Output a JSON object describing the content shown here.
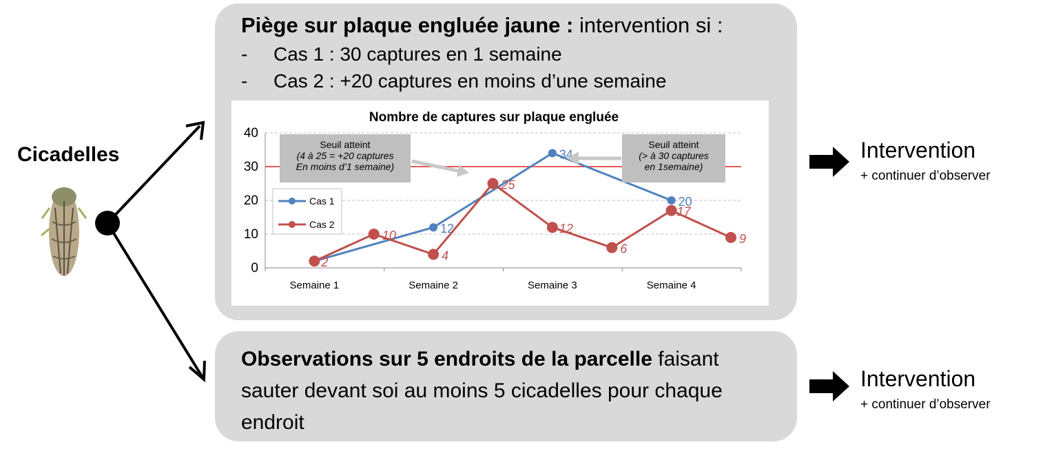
{
  "left": {
    "title": "Cicadelles"
  },
  "box1": {
    "title_bold": "Piège sur plaque engluée jaune :",
    "title_rest": " intervention si :",
    "bullets": [
      {
        "dash": "-",
        "text": "Cas 1 : 30 captures en 1 semaine"
      },
      {
        "dash": "-",
        "text": "Cas 2 : +20 captures en moins d’une semaine"
      }
    ]
  },
  "box2": {
    "text_bold": "Observations sur 5 endroits de la parcelle",
    "text_rest": " faisant sauter devant soi au moins 5 cicadelles pour chaque endroit"
  },
  "outcome1": {
    "title": "Intervention",
    "sub": "+ continuer d’observer"
  },
  "outcome2": {
    "title": "Intervention",
    "sub": "+ continuer d’observer"
  },
  "chart_data": {
    "type": "line",
    "title": "Nombre de captures sur plaque engluée",
    "ylim": [
      0,
      40
    ],
    "yticks": [
      0,
      10,
      20,
      30,
      40
    ],
    "categories": [
      "Semaine 1",
      "Semaine 2",
      "Semaine 3",
      "Semaine 4"
    ],
    "threshold": 30,
    "grid": true,
    "legend_position": "left",
    "series": [
      {
        "name": "Cas 1",
        "color": "#4f81bd",
        "x": [
          1,
          2,
          3,
          4
        ],
        "values": [
          2,
          12,
          34,
          20
        ],
        "labels": [
          "",
          "12",
          "34",
          "20"
        ]
      },
      {
        "name": "Cas 2",
        "color": "#c0504d",
        "x": [
          1,
          1.5,
          2,
          2.5,
          3,
          3.5,
          4,
          4.5
        ],
        "values": [
          2,
          10,
          4,
          25,
          12,
          6,
          17,
          9
        ],
        "labels": [
          "2",
          "10",
          "4",
          "25",
          "12",
          "6",
          "17",
          "9"
        ]
      }
    ],
    "annotations": [
      {
        "lines": [
          "Seuil atteint",
          "(4 à 25 = +20 captures",
          "En moins d’1 semaine)"
        ]
      },
      {
        "lines": [
          "Seuil atteint",
          "(> à 30 captures",
          "en 1semaine)"
        ]
      }
    ]
  }
}
